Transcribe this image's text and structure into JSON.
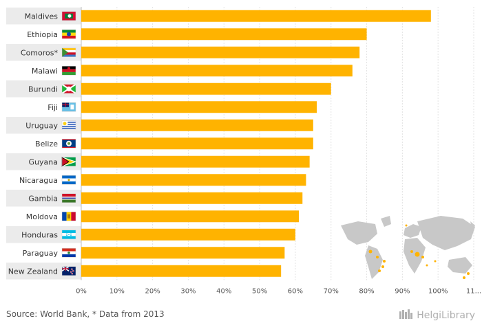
{
  "chart_data": {
    "type": "bar",
    "orientation": "horizontal",
    "categories": [
      "Maldives",
      "Ethiopia",
      "Comoros*",
      "Malawi",
      "Burundi",
      "Fiji",
      "Uruguay",
      "Belize",
      "Guyana",
      "Nicaragua",
      "Gambia",
      "Moldova",
      "Honduras",
      "Paraguay",
      "New Zealand"
    ],
    "values": [
      98,
      80,
      78,
      76,
      70,
      66,
      65,
      65,
      64,
      63,
      62,
      61,
      60,
      57,
      56
    ],
    "x_ticks": [
      "0%",
      "10%",
      "20%",
      "30%",
      "40%",
      "50%",
      "60%",
      "70%",
      "80%",
      "90%",
      "100%",
      "11..."
    ],
    "xlim": [
      0,
      110
    ],
    "bar_color": "#FFB300",
    "grid": true
  },
  "flags": [
    "maldives-flag-icon",
    "ethiopia-flag-icon",
    "comoros-flag-icon",
    "malawi-flag-icon",
    "burundi-flag-icon",
    "fiji-flag-icon",
    "uruguay-flag-icon",
    "belize-flag-icon",
    "guyana-flag-icon",
    "nicaragua-flag-icon",
    "gambia-flag-icon",
    "moldova-flag-icon",
    "honduras-flag-icon",
    "paraguay-flag-icon",
    "new-zealand-flag-icon"
  ],
  "footer": {
    "source": "Source: World Bank, * Data from 2013",
    "brand": "HelgiLibrary"
  },
  "colors": {
    "label_band": "#EBEBEB",
    "map": "#C8C8C8",
    "highlight": "#FFB300"
  }
}
